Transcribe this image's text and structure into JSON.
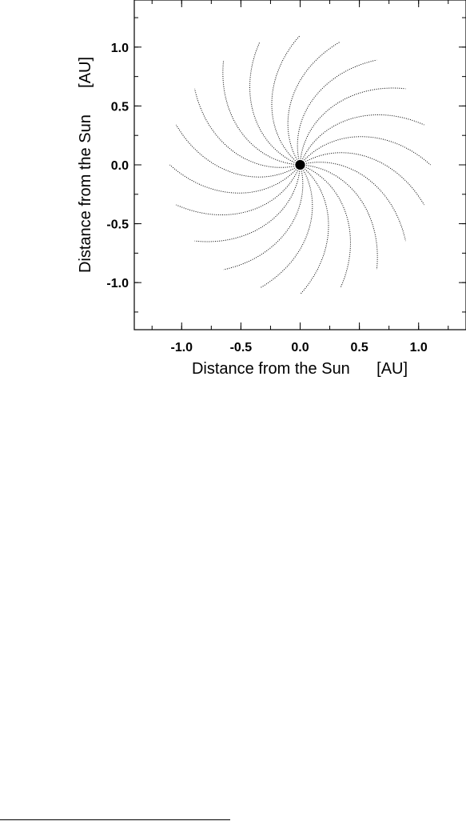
{
  "chart_data": {
    "type": "line",
    "title": "",
    "xlabel": "Distance from the Sun      [AU]",
    "ylabel": "Distance from the Sun      [AU]",
    "xlim": [
      -1.4,
      1.4
    ],
    "ylim": [
      -1.4,
      1.4
    ],
    "x_ticks": [
      -1.0,
      -0.5,
      0.0,
      0.5,
      1.0
    ],
    "y_ticks": [
      -1.0,
      -0.5,
      0.0,
      0.5,
      1.0
    ],
    "x_tick_labels": [
      "-1.0",
      "-0.5",
      "0.0",
      "0.5",
      "1.0"
    ],
    "y_tick_labels": [
      "-1.0",
      "-0.5",
      "0.0",
      "0.5",
      "1.0"
    ],
    "grid": false,
    "legend": "none",
    "line_style": "dotted",
    "spiral": {
      "arm_count": 20,
      "max_radius_au": 1.1,
      "twist_rad_at_max_radius": 0.9,
      "first_arm_outer_angle_deg": 0
    },
    "sun": {
      "x": 0.0,
      "y": 0.0
    }
  }
}
